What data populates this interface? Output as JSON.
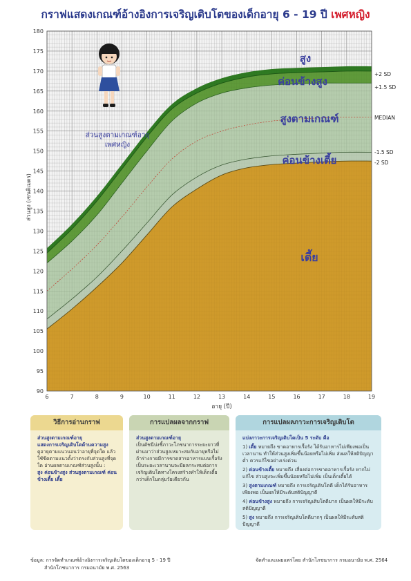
{
  "title": {
    "main": "กราฟแสดงเกณฑ์อ้างอิงการเจริญเติบโตของเด็กอายุ 6 - 19 ปี",
    "sex": "เพศหญิง"
  },
  "colors": {
    "short_fill": "#cf9a2b",
    "lower_band": "#b9cbb3",
    "normal_band": "#a9c4a0",
    "upper_band": "#5f9a3a",
    "tall_band": "#2f7a22",
    "grid_bg": "#f3f3f3",
    "label_blue": "#3a3f9e"
  },
  "chart_data": {
    "type": "line",
    "title": "",
    "xlabel": "อายุ (ปี)",
    "ylabel": "ส่วนสูง (เซนติเมตร)",
    "xlim": [
      6,
      19
    ],
    "ylim": [
      90,
      180
    ],
    "xticks": [
      "6",
      "7",
      "8",
      "9",
      "10",
      "11",
      "12",
      "13",
      "14",
      "15",
      "16",
      "17",
      "18",
      "19"
    ],
    "yticks": [
      "90",
      "95",
      "100",
      "105",
      "110",
      "115",
      "120",
      "125",
      "130",
      "135",
      "140",
      "145",
      "150",
      "155",
      "160",
      "165",
      "170",
      "175",
      "180"
    ],
    "grid": true,
    "x": [
      6,
      7,
      8,
      9,
      10,
      11,
      12,
      13,
      14,
      15,
      16,
      17,
      18,
      19
    ],
    "series": [
      {
        "name": "+2 SD",
        "values": [
          124.5,
          130.5,
          137.5,
          145.5,
          153.5,
          160.5,
          164.5,
          167.0,
          168.5,
          169.3,
          169.6,
          169.8,
          170.0,
          170.0
        ]
      },
      {
        "name": "+1.5 SD",
        "values": [
          122.0,
          127.5,
          134.0,
          142.0,
          150.0,
          157.5,
          162.0,
          164.5,
          165.8,
          166.5,
          166.8,
          167.0,
          167.0,
          167.0
        ]
      },
      {
        "name": "MEDIAN",
        "values": [
          115.0,
          120.5,
          126.5,
          133.5,
          141.0,
          148.0,
          152.5,
          155.0,
          156.5,
          157.5,
          158.0,
          158.3,
          158.5,
          158.5
        ]
      },
      {
        "name": "-1.5 SD",
        "values": [
          108.0,
          113.0,
          118.5,
          125.0,
          132.0,
          139.0,
          143.5,
          146.5,
          148.0,
          148.8,
          149.2,
          149.5,
          149.7,
          149.7
        ]
      },
      {
        "name": "-2 SD",
        "values": [
          105.5,
          110.5,
          116.0,
          122.0,
          129.0,
          136.0,
          140.5,
          144.0,
          145.8,
          146.6,
          147.0,
          147.3,
          147.5,
          147.5
        ]
      }
    ],
    "right_labels": [
      "+2 SD",
      "+1.5 SD",
      "MEDIAN",
      "-1.5 SD",
      "-2 SD"
    ],
    "zone_labels": [
      "สูง",
      "ค่อนข้างสูง",
      "สูงตามเกณฑ์",
      "ค่อนข้างเตี้ย",
      "เตี้ย"
    ],
    "inset_label": [
      "ส่วนสูงตามเกณฑ์อายุ",
      "เพศหญิง"
    ]
  },
  "panels": {
    "how_to": {
      "title": "วิธีการอ่านกราฟ",
      "lead": "ส่วนสูงตามเกณฑ์อายุ",
      "lead2": "แสดงการเจริญเติบโตด้านความสูง",
      "text": "ดูอายุตามแนวนอนว่าอายุที่จุดใด แล้วใช้ขีดตามแนวตั้งว่าตรงกับส่วนสูงที่จุดใด อ่านผลตามเกณฑ์ส่วนสูงนั้น :",
      "levels": "สูง ค่อนข้างสูง ส่วนสูงตามเกณฑ์ ค่อนข้างเตี้ย เตี้ย"
    },
    "interpret": {
      "title": "การแปลผลจากกราฟ",
      "lead": "ส่วนสูงตามเกณฑ์อายุ",
      "text": "เป็นดัชนีบ่งชี้ภาวะโภชนาการระยะยาวที่ผ่านมาว่าส่วนสูงเหมาะสมกับอายุหรือไม่ ถ้าร่างกายมีการขาดสารอาหารแบบเรื้อรังเป็นระยะเวลานานจะมีผลกระทบต่อการเจริญเติบโตทางโครงสร้างทำให้เด็กเตี้ยกว่าเด็กในกลุ่มวัยเดียวกัน"
    },
    "growth": {
      "title": "การแปลผลภาวะการเจริญเติบโต",
      "lead": "แบ่งภาวะการเจริญเติบโตเป็น 5 ระดับ คือ",
      "items": [
        {
          "num": "1)",
          "key": "เตี้ย",
          "text": "หมายถึง ขาดอาหารเรื้อรัง ได้รับอาหารไม่เพียงพอเป็นเวลานาน ทำให้ส่วนสูงเพิ่มขึ้นน้อยหรือไม่เพิ่ม ส่งผลให้สติปัญญาต่ำ ควรแก้ไขอย่างเร่งด่วน"
        },
        {
          "num": "2)",
          "key": "ค่อนข้างเตี้ย",
          "text": "หมายถึง เสี่ยงต่อการขาดอาหารเรื้อรัง หากไม่แก้ไข ส่วนสูงจะเพิ่มขึ้นน้อยหรือไม่เพิ่ม เป็นเด็กเตี้ยได้"
        },
        {
          "num": "3)",
          "key": "สูงตามเกณฑ์",
          "text": "หมายถึง การเจริญเติบโตดี เด็กได้รับอาหารเพียงพอ เป็นผลให้มีระดับสติปัญญาดี"
        },
        {
          "num": "4)",
          "key": "ค่อนข้างสูง",
          "text": "หมายถึง การเจริญเติบโตดีมาก เป็นผลให้มีระดับสติปัญญาดี"
        },
        {
          "num": "5)",
          "key": "สูง",
          "text": "หมายถึง การเจริญเติบโตดีมากๆ เป็นผลให้มีระดับสติปัญญาดี"
        }
      ]
    }
  },
  "footer": {
    "source_line1": "ข้อมูล: การจัดทำเกณฑ์อ้างอิงการเจริญเติบโตของเด็กอายุ 5 - 19 ปี",
    "source_line2": "สำนักโภชนาการ กรมอนามัย พ.ศ. 2563",
    "credit": "จัดทำและเผยแพร่โดย สำนักโภชนาการ กรมอนามัย พ.ศ. 2564"
  }
}
